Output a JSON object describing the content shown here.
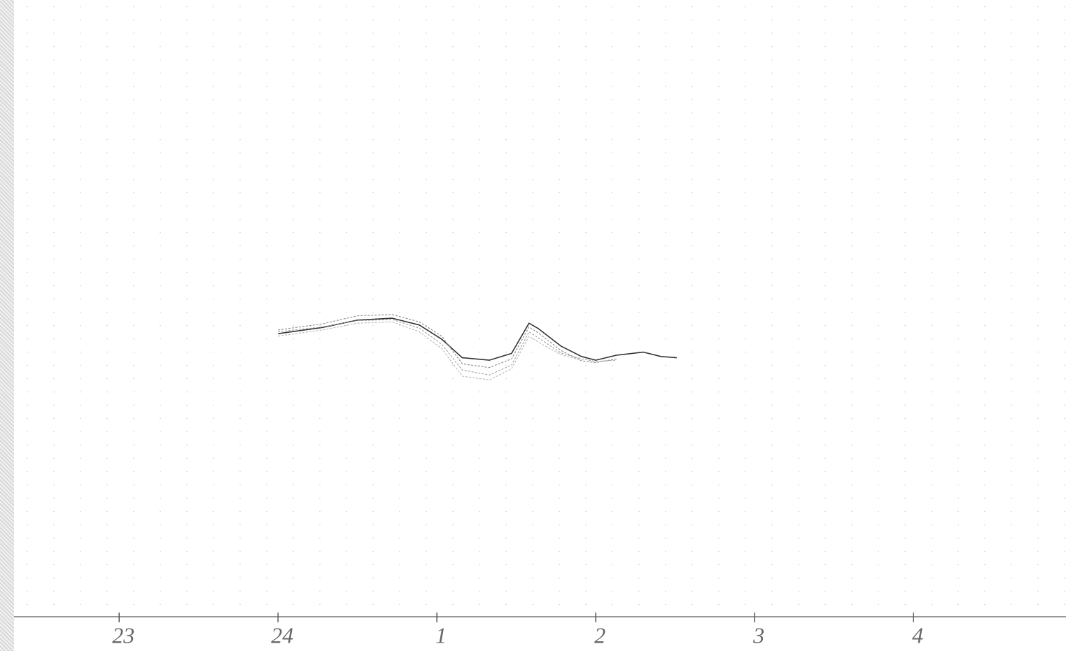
{
  "chart_data": {
    "type": "line",
    "x": [
      24.0,
      24.28,
      24.5,
      24.72,
      24.89,
      25.03,
      25.16,
      25.33,
      25.47,
      25.58,
      25.64,
      25.78,
      25.91,
      26.0,
      26.13,
      26.3,
      26.41,
      26.51
    ],
    "series": [
      {
        "color": "#333333",
        "values": [
          45.9,
          46.9,
          48.1,
          48.4,
          47.3,
          45.0,
          42.0,
          41.6,
          42.7,
          47.6,
          46.7,
          43.9,
          42.2,
          41.6,
          42.4,
          42.9,
          42.2,
          42.0
        ]
      },
      {
        "color": "#8a8a8a",
        "values": [
          46.5,
          47.5,
          48.8,
          49.0,
          47.8,
          45.5,
          41.0,
          40.4,
          41.8,
          47.0,
          46.0,
          43.2,
          41.5,
          41.2,
          41.8,
          null,
          null,
          null
        ]
      },
      {
        "color": "#a0a0a0",
        "values": [
          46.2,
          47.0,
          48.0,
          48.2,
          46.8,
          44.2,
          40.0,
          39.2,
          40.8,
          46.2,
          45.2,
          42.8,
          41.8,
          41.4,
          41.6,
          null,
          null,
          null
        ]
      },
      {
        "color": "#b8b8b8",
        "values": [
          45.5,
          46.5,
          47.6,
          47.8,
          46.2,
          43.5,
          39.0,
          38.4,
          40.2,
          45.5,
          44.5,
          42.5,
          41.6,
          null,
          null,
          null,
          null,
          null
        ]
      }
    ],
    "xlim": [
      22.25,
      28.96
    ],
    "xticks": [
      23,
      24,
      {
        "value": 25,
        "label": "1"
      },
      {
        "value": 26,
        "label": "2"
      },
      {
        "value": 27,
        "label": "3"
      },
      {
        "value": 28,
        "label": "4"
      }
    ],
    "ylim": [
      0,
      100
    ]
  }
}
